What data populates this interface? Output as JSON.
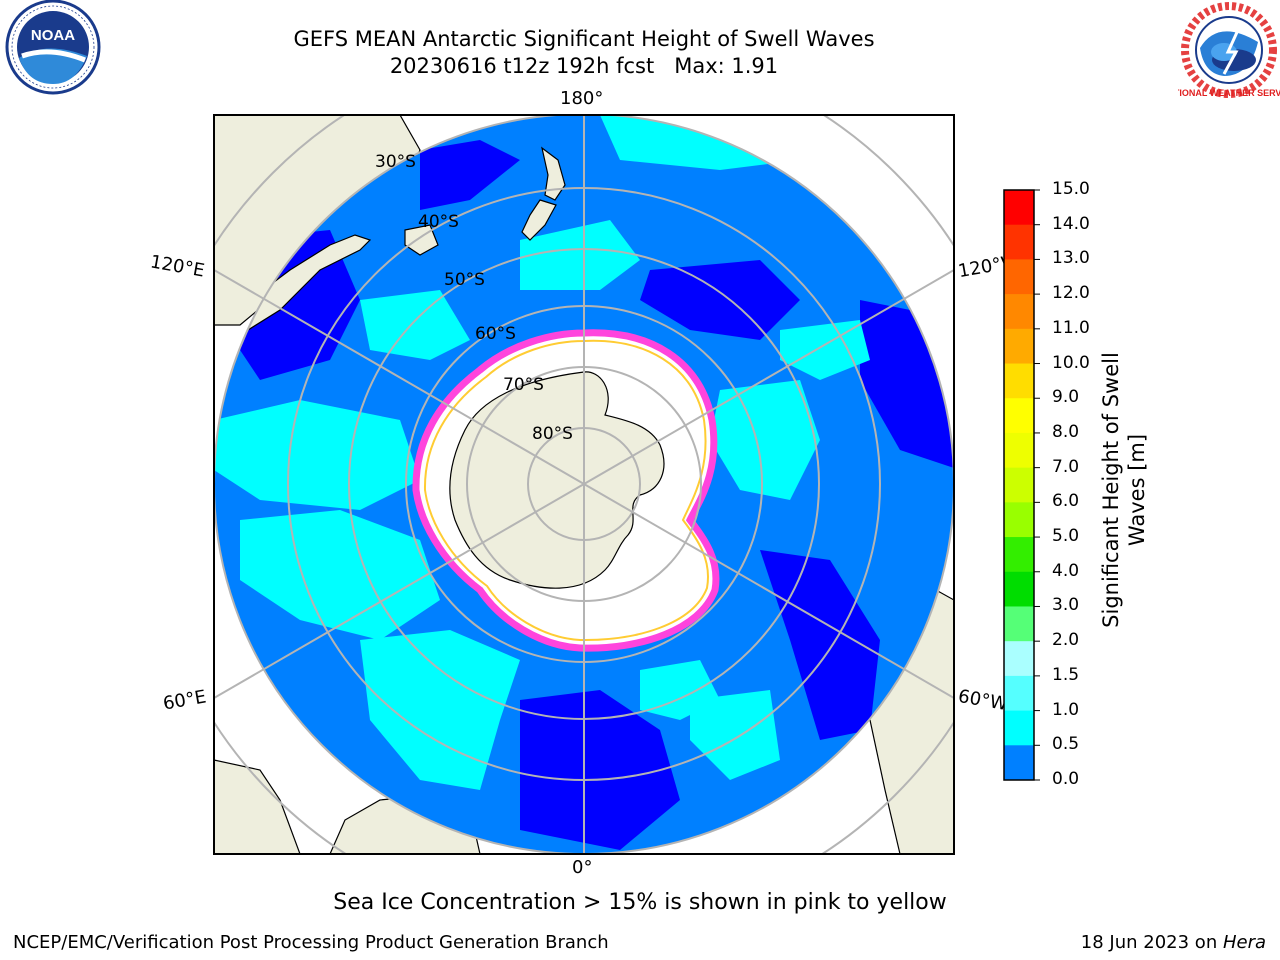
{
  "title": {
    "line1": "GEFS MEAN Antarctic Significant Height of Swell Waves",
    "line2": "20230616 t12z 192h fcst   Max: 1.91"
  },
  "logos": {
    "left_text": "NOAA",
    "right_text": "NATIONAL WEATHER SERVICE"
  },
  "map": {
    "longitude_labels": [
      "180°",
      "120°E",
      "120°W",
      "60°E",
      "60°W",
      "0°"
    ],
    "latitude_labels": [
      "30°S",
      "40°S",
      "50°S",
      "60°S",
      "70°S",
      "80°S"
    ]
  },
  "colorbar": {
    "title": "Significant Height of Swell Waves [m]",
    "ticks": [
      "15.0",
      "14.0",
      "13.0",
      "12.0",
      "11.0",
      "10.0",
      "9.0",
      "8.0",
      "7.0",
      "6.0",
      "5.0",
      "4.0",
      "3.0",
      "2.0",
      "1.5",
      "1.0",
      "0.5",
      "0.0"
    ],
    "colors": [
      "#ff0000",
      "#ff3300",
      "#ff6600",
      "#ff8800",
      "#ffaa00",
      "#ffdd00",
      "#ffff00",
      "#eeff00",
      "#ccff00",
      "#99ff00",
      "#33ee00",
      "#00dd00",
      "#55ff77",
      "#aaffff",
      "#55ffff",
      "#00ffff",
      "#0080ff",
      "#0000ff"
    ]
  },
  "palette": {
    "ocean_deep_blue": "#0000ff",
    "ocean_mid_blue": "#0080ff",
    "ocean_cyan": "#00ffff",
    "land": "#eeeedd",
    "ice": "#ffffff",
    "ice_edge_pink": "#ff44dd",
    "ice_edge_yellow": "#ffcc33",
    "grid": "#b4b4b4"
  },
  "notes": {
    "sea_ice": "Sea Ice Concentration > 15% is shown in pink to yellow"
  },
  "footer": {
    "credit_left": "NCEP/EMC/Verification Post Processing Product Generation Branch",
    "date": "18 Jun 2023 on ",
    "host": "Hera"
  }
}
